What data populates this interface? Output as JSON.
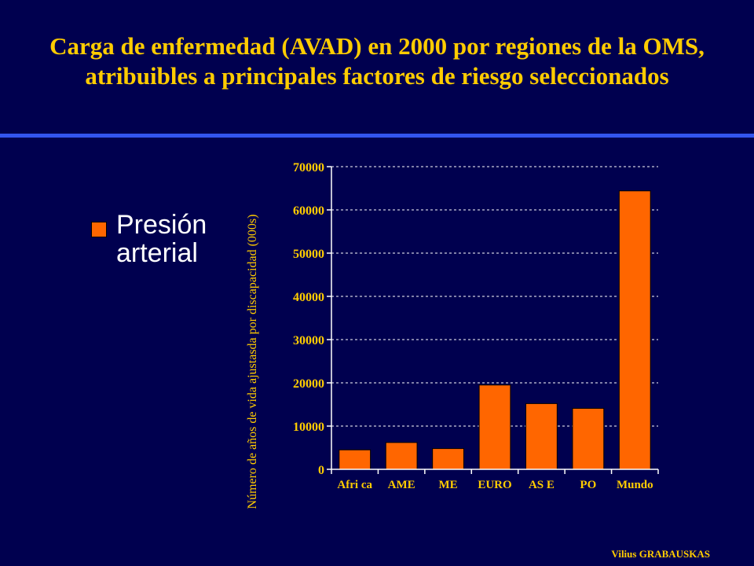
{
  "title_line1": "Carga de enfermedad (AVAD) en 2000 por regiones de la OMS,",
  "title_line2": "atribuibles a principales factores de riesgo seleccionados",
  "footer": "Vilius GRABAUSKAS",
  "colors": {
    "background": "#00004f",
    "title": "#ffcc00",
    "rule": "#3355ee",
    "bar": "#ff6600"
  },
  "chart_data": {
    "type": "bar",
    "title": "",
    "xlabel": "",
    "ylabel": "Número de años de vida ajustasda por discapacidad (000s)",
    "categories": [
      "Africa",
      "AME",
      "ME",
      "EURO",
      "ASE",
      "PO",
      "Mundo"
    ],
    "category_labels": [
      "Afri ca",
      "AME",
      "ME",
      "EURO",
      "AS E",
      "PO",
      "Mundo"
    ],
    "series": [
      {
        "name": "Presión arterial",
        "values": [
          4500,
          6200,
          4800,
          19500,
          15200,
          14100,
          64400
        ]
      }
    ],
    "ylim": [
      0,
      70000
    ],
    "yticks": [
      "0",
      "10000",
      "20000",
      "30000",
      "40000",
      "50000",
      "60000",
      "70000"
    ],
    "grid": true,
    "legend": "left"
  }
}
